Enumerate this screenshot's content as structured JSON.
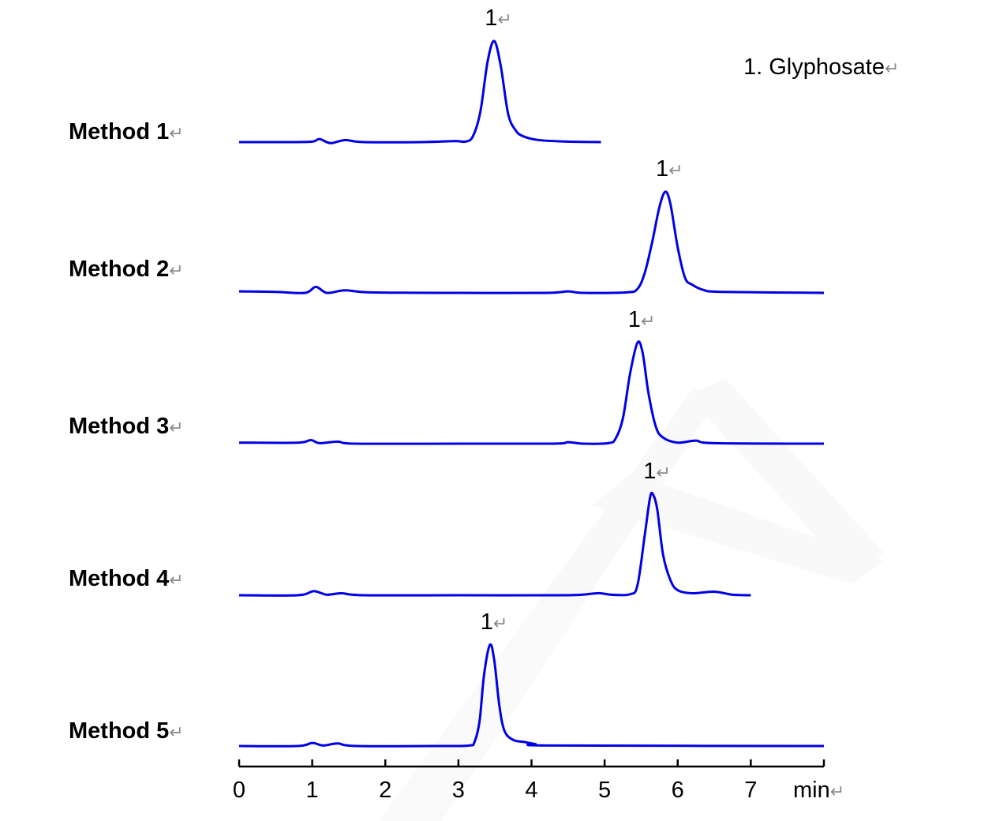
{
  "return_mark": "↵",
  "legend": "1. Glyphosate",
  "chart_data": {
    "type": "line",
    "title": "",
    "xlabel": "min",
    "ylabel": "",
    "xlim": [
      0,
      8
    ],
    "x_ticks": [
      "0",
      "1",
      "2",
      "3",
      "4",
      "5",
      "6",
      "7"
    ],
    "layout": "stacked chromatograms, shared time axis at bottom, no y axis",
    "line_color": "#0000e6",
    "series": [
      {
        "name": "Method 1",
        "peak_label": "1",
        "peak_time": 3.49,
        "points": [
          [
            0,
            0
          ],
          [
            0.7,
            0
          ],
          [
            1.0,
            0.5
          ],
          [
            1.1,
            3
          ],
          [
            1.25,
            -1
          ],
          [
            1.45,
            2
          ],
          [
            1.7,
            0
          ],
          [
            2.5,
            0
          ],
          [
            2.95,
            1
          ],
          [
            3.1,
            0.5
          ],
          [
            3.2,
            6
          ],
          [
            3.3,
            30
          ],
          [
            3.4,
            80
          ],
          [
            3.49,
            100
          ],
          [
            3.58,
            75
          ],
          [
            3.68,
            28
          ],
          [
            3.78,
            12
          ],
          [
            3.88,
            6
          ],
          [
            4.1,
            2
          ],
          [
            4.5,
            0.5
          ],
          [
            4.95,
            0
          ]
        ]
      },
      {
        "name": "Method 2",
        "peak_label": "1",
        "peak_time": 5.83,
        "points": [
          [
            0,
            1.5
          ],
          [
            0.5,
            1
          ],
          [
            0.9,
            0
          ],
          [
            1.05,
            6
          ],
          [
            1.2,
            0
          ],
          [
            1.45,
            2.5
          ],
          [
            1.8,
            0.5
          ],
          [
            3,
            0
          ],
          [
            4.2,
            0
          ],
          [
            4.5,
            1.5
          ],
          [
            4.7,
            0
          ],
          [
            5.3,
            0.5
          ],
          [
            5.45,
            4
          ],
          [
            5.55,
            20
          ],
          [
            5.65,
            50
          ],
          [
            5.75,
            85
          ],
          [
            5.83,
            100
          ],
          [
            5.9,
            88
          ],
          [
            6.0,
            45
          ],
          [
            6.1,
            15
          ],
          [
            6.2,
            8
          ],
          [
            6.35,
            3
          ],
          [
            6.6,
            1
          ],
          [
            8,
            0
          ]
        ]
      },
      {
        "name": "Method 3",
        "peak_label": "1",
        "peak_time": 5.45,
        "points": [
          [
            0,
            1
          ],
          [
            0.8,
            1
          ],
          [
            0.98,
            3.5
          ],
          [
            1.1,
            0.5
          ],
          [
            1.35,
            2
          ],
          [
            1.6,
            0
          ],
          [
            3,
            0
          ],
          [
            4.3,
            0
          ],
          [
            4.5,
            1.5
          ],
          [
            4.7,
            0
          ],
          [
            5.05,
            0.5
          ],
          [
            5.15,
            5
          ],
          [
            5.25,
            25
          ],
          [
            5.35,
            70
          ],
          [
            5.45,
            100
          ],
          [
            5.52,
            90
          ],
          [
            5.6,
            50
          ],
          [
            5.7,
            17
          ],
          [
            5.8,
            6
          ],
          [
            6.0,
            1
          ],
          [
            6.25,
            3
          ],
          [
            6.5,
            0.5
          ],
          [
            8,
            0
          ]
        ]
      },
      {
        "name": "Method 4",
        "peak_label": "1",
        "peak_time": 5.66,
        "points": [
          [
            0,
            0
          ],
          [
            0.8,
            0
          ],
          [
            1.02,
            4
          ],
          [
            1.2,
            0.5
          ],
          [
            1.4,
            2
          ],
          [
            1.7,
            0
          ],
          [
            3,
            0
          ],
          [
            4.5,
            0
          ],
          [
            4.9,
            2
          ],
          [
            5.1,
            0.5
          ],
          [
            5.35,
            1
          ],
          [
            5.45,
            10
          ],
          [
            5.55,
            60
          ],
          [
            5.62,
            96
          ],
          [
            5.66,
            100
          ],
          [
            5.72,
            85
          ],
          [
            5.8,
            40
          ],
          [
            5.9,
            15
          ],
          [
            6.0,
            5
          ],
          [
            6.2,
            2
          ],
          [
            6.5,
            3.5
          ],
          [
            6.75,
            0.5
          ],
          [
            7.0,
            0
          ]
        ]
      },
      {
        "name": "Method 5",
        "peak_label": "1",
        "peak_time": 3.43,
        "points": [
          [
            0,
            0
          ],
          [
            0.8,
            0
          ],
          [
            1.0,
            3
          ],
          [
            1.15,
            0.5
          ],
          [
            1.35,
            2.5
          ],
          [
            1.6,
            0
          ],
          [
            2.8,
            0
          ],
          [
            3.15,
            0.5
          ],
          [
            3.22,
            4
          ],
          [
            3.29,
            25
          ],
          [
            3.35,
            70
          ],
          [
            3.43,
            100
          ],
          [
            3.49,
            85
          ],
          [
            3.56,
            40
          ],
          [
            3.63,
            15
          ],
          [
            3.75,
            6
          ],
          [
            3.9,
            4
          ],
          [
            4.05,
            2
          ],
          [
            4.3,
            0.5
          ],
          [
            8,
            0
          ]
        ]
      }
    ]
  }
}
